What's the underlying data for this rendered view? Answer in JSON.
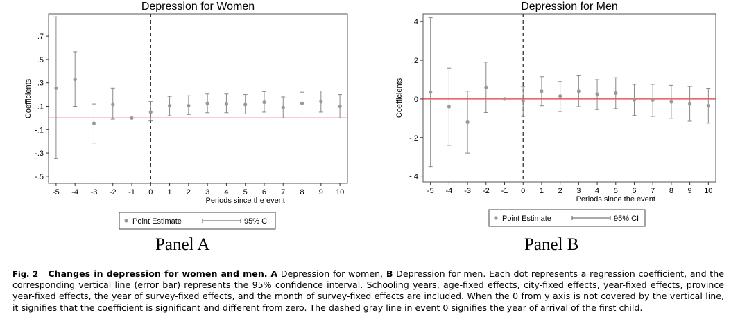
{
  "chart_data": [
    {
      "type": "scatter",
      "title": "Depression for Women",
      "xlabel": "Periods since the event",
      "ylabel": "Coefficients",
      "x": [
        -5,
        -4,
        -3,
        -2,
        -1,
        0,
        1,
        2,
        3,
        4,
        5,
        6,
        7,
        8,
        9,
        10
      ],
      "x_ticks": [
        "-5",
        "-4",
        "-3",
        "-2",
        "-1",
        "0",
        "1",
        "2",
        "3",
        "4",
        "5",
        "6",
        "7",
        "8",
        "9",
        "10"
      ],
      "y_ticks": [
        "-.5",
        "-.3",
        "-.1",
        ".1",
        ".3",
        ".5",
        ".7"
      ],
      "y_tick_values": [
        -0.5,
        -0.3,
        -0.1,
        0.1,
        0.3,
        0.5,
        0.7
      ],
      "ylim": [
        -0.56,
        0.89
      ],
      "xlim": [
        -5.4,
        10.4
      ],
      "point_estimate": [
        0.255,
        0.33,
        -0.045,
        0.115,
        0.0,
        0.05,
        0.105,
        0.105,
        0.125,
        0.12,
        0.115,
        0.135,
        0.09,
        0.125,
        0.14,
        0.1
      ],
      "ci_low": [
        -0.345,
        0.1,
        -0.215,
        -0.01,
        0.0,
        -0.025,
        0.02,
        0.03,
        0.045,
        0.045,
        0.035,
        0.05,
        0.0,
        0.035,
        0.05,
        0.0
      ],
      "ci_high": [
        0.865,
        0.565,
        0.12,
        0.255,
        0.0,
        0.14,
        0.185,
        0.19,
        0.205,
        0.205,
        0.2,
        0.225,
        0.18,
        0.22,
        0.23,
        0.2
      ],
      "reference_line_y": 0,
      "event_line_x": 0,
      "legend": [
        "Point Estimate",
        "95% CI"
      ],
      "legend_position": "bottom",
      "grid": false,
      "colors": {
        "estimate": "#999999",
        "ci": "#888888",
        "zero_line": "#e8363c",
        "event_line": "#222222"
      }
    },
    {
      "type": "scatter",
      "title": "Depression for Men",
      "xlabel": "Periods since the event",
      "ylabel": "Coefficients",
      "x": [
        -5,
        -4,
        -3,
        -2,
        -1,
        0,
        1,
        2,
        3,
        4,
        5,
        6,
        7,
        8,
        9,
        10
      ],
      "x_ticks": [
        "-5",
        "-4",
        "-3",
        "-2",
        "-1",
        "0",
        "1",
        "2",
        "3",
        "4",
        "5",
        "6",
        "7",
        "8",
        "9",
        "10"
      ],
      "y_ticks": [
        "-.4",
        "-.2",
        "0",
        ".2",
        ".4"
      ],
      "y_tick_values": [
        -0.4,
        -0.2,
        0,
        0.2,
        0.4
      ],
      "ylim": [
        -0.43,
        0.44
      ],
      "xlim": [
        -5.4,
        10.4
      ],
      "point_estimate": [
        0.035,
        -0.04,
        -0.12,
        0.06,
        0.0,
        -0.01,
        0.04,
        0.015,
        0.04,
        0.025,
        0.03,
        -0.005,
        -0.005,
        -0.015,
        -0.025,
        -0.035
      ],
      "ci_low": [
        -0.35,
        -0.24,
        -0.28,
        -0.07,
        0.0,
        -0.09,
        -0.035,
        -0.065,
        -0.04,
        -0.055,
        -0.05,
        -0.085,
        -0.09,
        -0.1,
        -0.115,
        -0.125
      ],
      "ci_high": [
        0.42,
        0.16,
        0.04,
        0.19,
        0.0,
        0.065,
        0.115,
        0.09,
        0.12,
        0.1,
        0.11,
        0.075,
        0.075,
        0.07,
        0.065,
        0.055
      ],
      "reference_line_y": 0,
      "event_line_x": 0,
      "legend": [
        "Point Estimate",
        "95% CI"
      ],
      "legend_position": "bottom",
      "grid": false,
      "colors": {
        "estimate": "#999999",
        "ci": "#888888",
        "zero_line": "#e8363c",
        "event_line": "#222222"
      }
    }
  ],
  "panels": {
    "a_label": "Panel A",
    "b_label": "Panel B"
  },
  "caption": {
    "fig_num": "Fig. 2",
    "title": "Changes in depression for women and men.",
    "a_letter": "A",
    "a_text": "Depression for women,",
    "b_letter": "B",
    "text": "Depression for men. Each dot represents a regression coefficient, and the corresponding vertical line (error bar) represents the 95% confidence interval. Schooling years, age-fixed effects, city-fixed effects, year-fixed effects, province year-fixed effects, the year of survey-fixed effects, and the month of survey-fixed effects are included. When the 0 from y axis is not covered by the vertical line, it signifies that the coefficient is significant and different from zero. The dashed gray line in event 0 signifies the year of arrival of the first child."
  }
}
